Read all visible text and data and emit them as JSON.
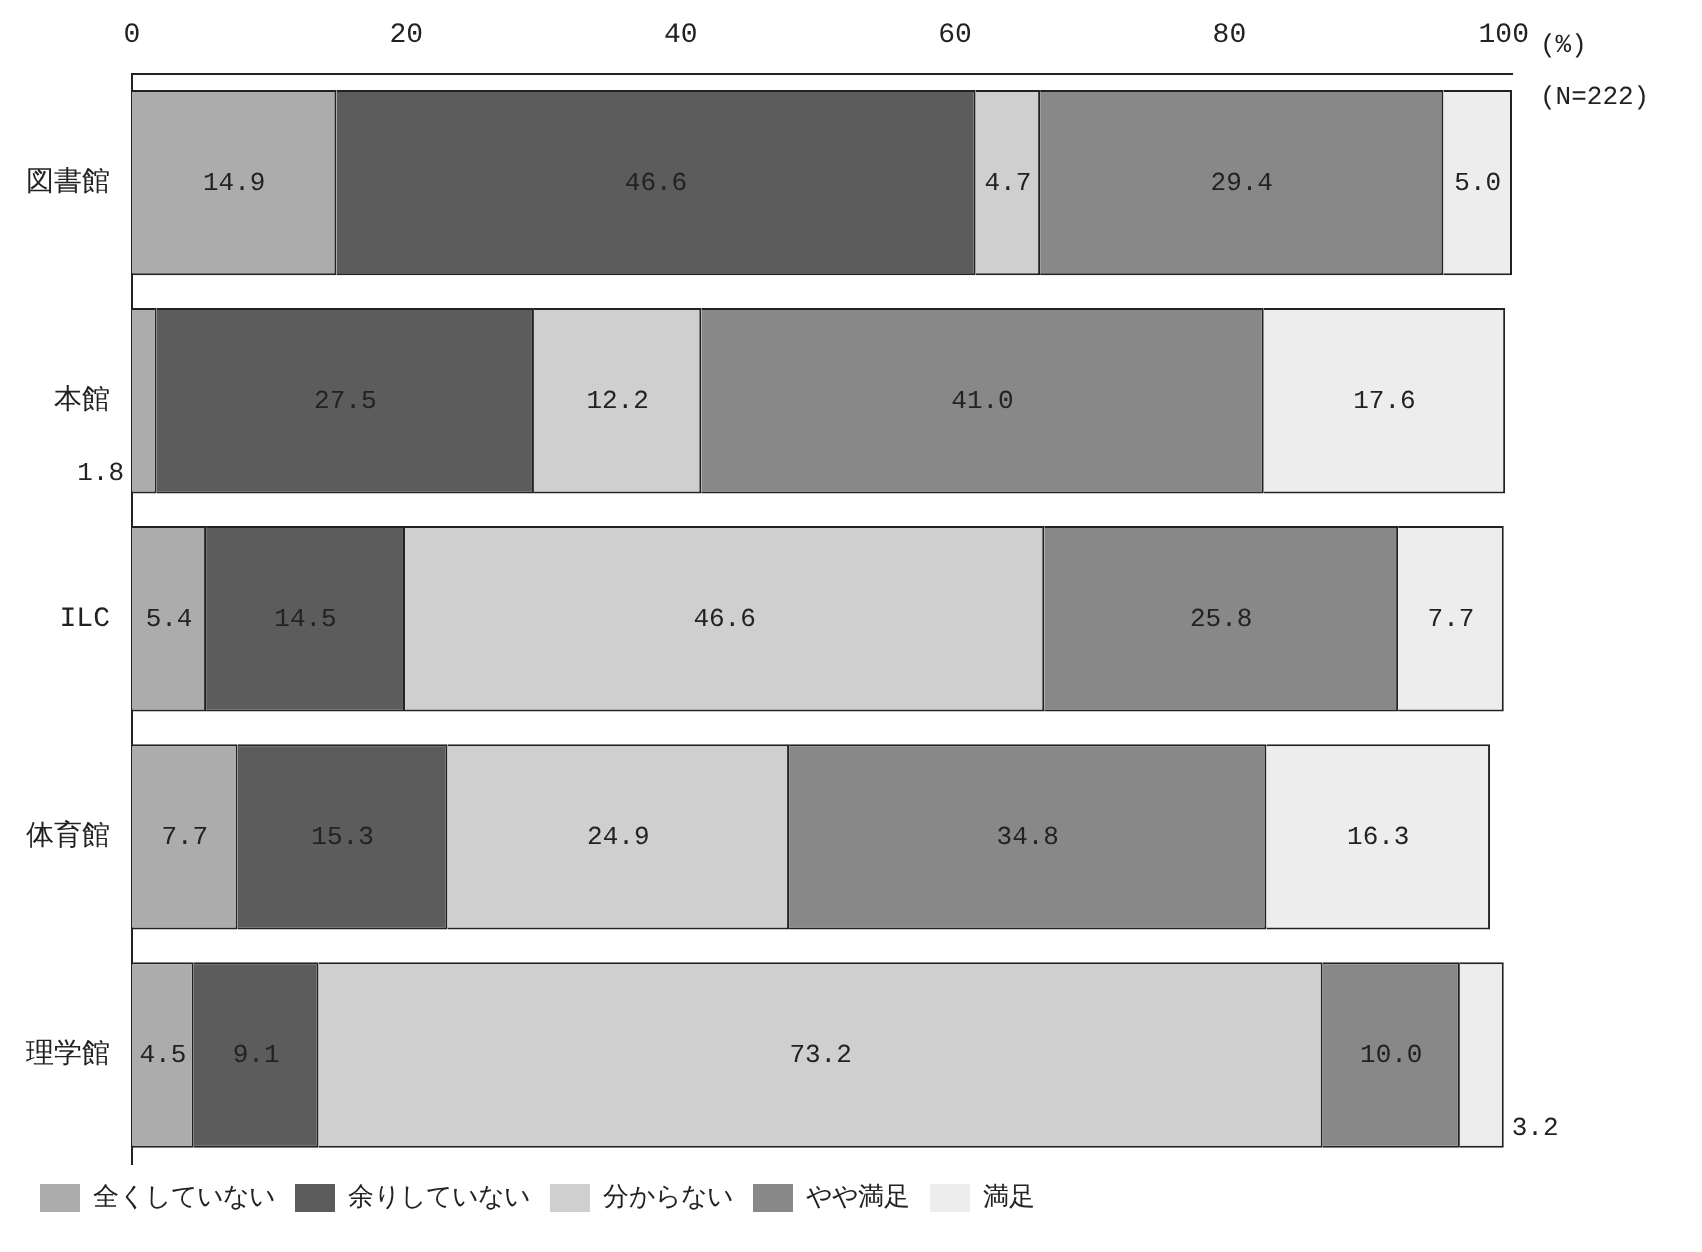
{
  "chart_data": {
    "type": "bar",
    "orientation": "horizontal",
    "stacked": true,
    "categories": [
      "図書館",
      "本館",
      "ILC",
      "体育館",
      "理学館"
    ],
    "series": [
      {
        "name": "全くしていない",
        "color": "#acacac",
        "values": [
          14.9,
          1.8,
          5.4,
          7.7,
          4.5
        ],
        "value_labels": [
          "14.9",
          "1.8",
          "5.4",
          "7.7",
          "4.5"
        ]
      },
      {
        "name": "余りしていない",
        "color": "#5c5c5c",
        "values": [
          46.6,
          27.5,
          14.5,
          15.3,
          9.1
        ],
        "value_labels": [
          "46.6",
          "27.5",
          "14.5",
          "15.3",
          "9.1"
        ]
      },
      {
        "name": "分からない",
        "color": "#cfcfcf",
        "values": [
          4.7,
          12.2,
          46.6,
          24.9,
          73.2
        ],
        "value_labels": [
          "4.7",
          "12.2",
          "46.6",
          "24.9",
          "73.2"
        ]
      },
      {
        "name": "やや満足",
        "color": "#888888",
        "values": [
          29.4,
          41.0,
          25.8,
          34.8,
          10.0
        ],
        "value_labels": [
          "29.4",
          "41.0",
          "25.8",
          "34.8",
          "10.0"
        ]
      },
      {
        "name": "満足",
        "color": "#ededed",
        "values": [
          5.0,
          17.6,
          7.7,
          16.3,
          3.2
        ],
        "value_labels": [
          "5.0",
          "17.6",
          "7.7",
          "16.3",
          "3.2"
        ]
      }
    ],
    "xlim": [
      0,
      100.6
    ],
    "xticks": [
      0,
      20,
      40,
      60,
      80,
      100
    ],
    "grid": false,
    "legend": "bottom",
    "annotations": [
      "(%)",
      "(N=222)"
    ]
  }
}
